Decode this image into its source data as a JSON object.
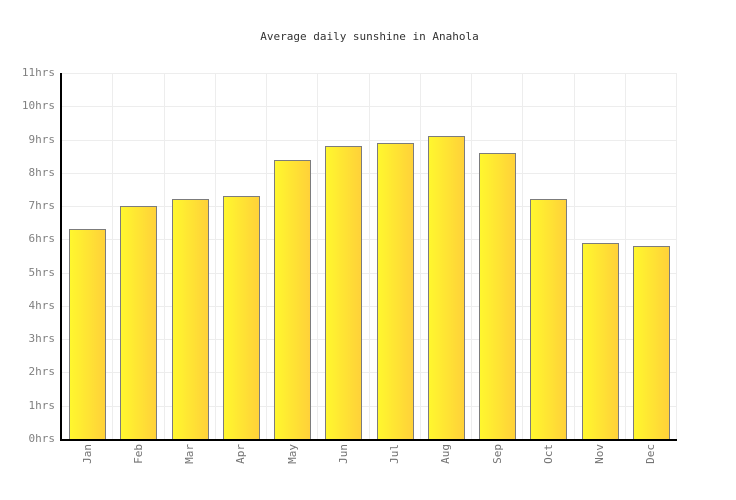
{
  "page": {
    "background_color": "#ffffff"
  },
  "chart_data": {
    "type": "bar",
    "title": "Average daily sunshine in Anahola",
    "categories": [
      "Jan",
      "Feb",
      "Mar",
      "Apr",
      "May",
      "Jun",
      "Jul",
      "Aug",
      "Sep",
      "Oct",
      "Nov",
      "Dec"
    ],
    "values": [
      6.3,
      7.0,
      7.2,
      7.3,
      8.4,
      8.8,
      8.9,
      9.1,
      8.6,
      7.2,
      5.9,
      5.8
    ],
    "unit": "hrs",
    "xlabel": "",
    "ylabel": "",
    "y_ticks": [
      "0hrs",
      "1hrs",
      "2hrs",
      "3hrs",
      "4hrs",
      "5hrs",
      "6hrs",
      "7hrs",
      "8hrs",
      "9hrs",
      "10hrs",
      "11hrs"
    ],
    "ylim": [
      0,
      11
    ],
    "grid": "horizontal and vertical light gray gridlines",
    "legend_position": "none",
    "colors": {
      "bar_gradient_left": "#fff72e",
      "bar_gradient_right": "#ffd139",
      "bar_border": "#7c7c7c",
      "axis_line": "#000000",
      "gridline": "#ededed",
      "title_text": "#333333",
      "y_tick_text": "#808080",
      "x_tick_text": "#737373"
    }
  }
}
